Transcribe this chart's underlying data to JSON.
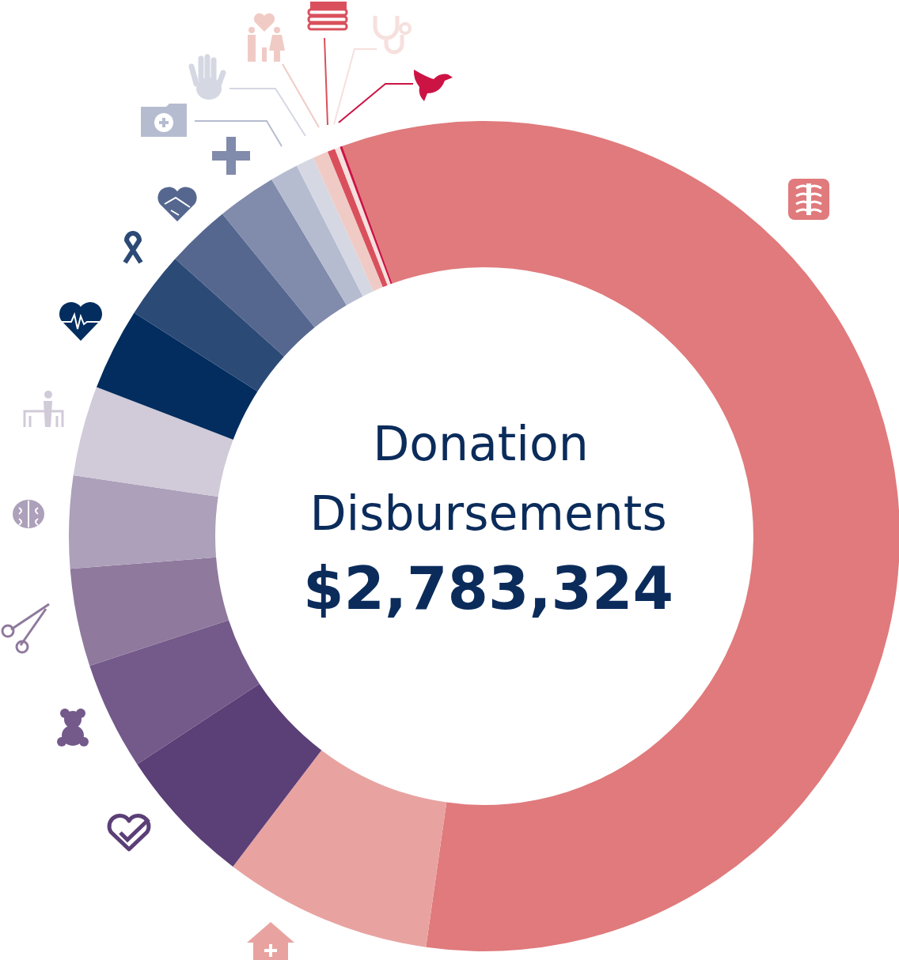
{
  "chart_data": {
    "type": "donut",
    "title": "Donation Disbursements",
    "subtitle": "$2,783,324",
    "categories": [
      null,
      null,
      null,
      null,
      null,
      null,
      null,
      null,
      null,
      null,
      null,
      null,
      null,
      null,
      null,
      null,
      null
    ],
    "values": [
      57.8,
      8.1,
      5.4,
      4.2,
      3.8,
      3.6,
      3.5,
      3.2,
      2.6,
      2.5,
      2.3,
      1.1,
      0.7,
      0.6,
      0.3,
      0.2,
      0.1
    ],
    "colors": [
      "#e07a7c",
      "#e8a3a1",
      "#5b3f77",
      "#735a8a",
      "#8f799d",
      "#ada0ba",
      "#d1cad9",
      "#022d5e",
      "#2c4a76",
      "#55678f",
      "#818bab",
      "#b6bcd0",
      "#d5d8e3",
      "#f0cbc6",
      "#d9505c",
      "#f6e0de",
      "#cc1444"
    ]
  }
}
